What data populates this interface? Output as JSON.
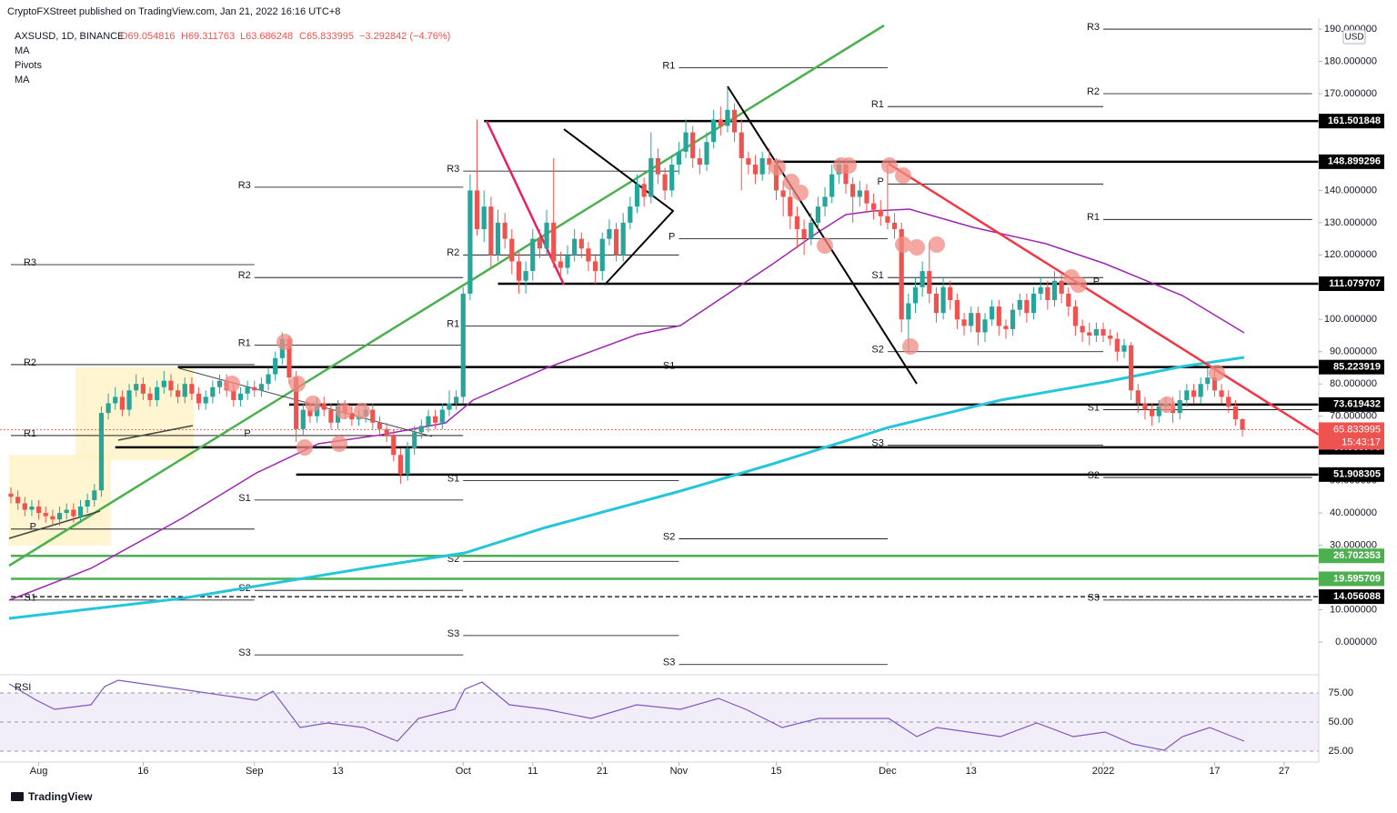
{
  "chart_data": {
    "type": "candlestick",
    "header": "CryptoFXStreet published on TradingView.com, Jan 21, 2022 16:16 UTC+8",
    "legend": {
      "symbol": "AXSUSD, 1D, BINANCE",
      "open": "O69.054816",
      "high": "H69.311763",
      "low": "L63.686248",
      "close": "C65.833995",
      "change": "−3.292842 (−4.76%)",
      "indicators": [
        "MA",
        "Pivots",
        "MA"
      ]
    },
    "currency": "USD",
    "colors": {
      "up": "#26a69a",
      "down": "#ef5350"
    },
    "candles": [
      [
        46,
        48,
        43,
        45
      ],
      [
        45,
        47,
        41,
        43
      ],
      [
        43,
        45,
        39,
        41
      ],
      [
        41,
        44,
        39,
        42
      ],
      [
        42,
        44,
        38,
        40
      ],
      [
        40,
        42,
        37,
        39
      ],
      [
        39,
        41,
        36,
        38
      ],
      [
        38,
        42,
        36,
        40
      ],
      [
        40,
        43,
        38,
        41
      ],
      [
        41,
        43,
        37,
        39
      ],
      [
        39,
        44,
        37,
        42
      ],
      [
        42,
        46,
        40,
        44
      ],
      [
        44,
        49,
        42,
        47
      ],
      [
        47,
        73,
        45,
        71
      ],
      [
        71,
        77,
        69,
        74
      ],
      [
        74,
        79,
        72,
        76
      ],
      [
        76,
        78,
        70,
        72
      ],
      [
        72,
        80,
        70,
        78
      ],
      [
        78,
        83,
        76,
        80
      ],
      [
        80,
        82,
        75,
        77
      ],
      [
        77,
        79,
        73,
        75
      ],
      [
        75,
        81,
        73,
        79
      ],
      [
        79,
        84,
        77,
        81
      ],
      [
        81,
        83,
        76,
        78
      ],
      [
        78,
        80,
        74,
        76
      ],
      [
        76,
        82,
        74,
        80
      ],
      [
        80,
        82,
        75,
        77
      ],
      [
        77,
        79,
        72,
        74
      ],
      [
        74,
        78,
        72,
        76
      ],
      [
        76,
        81,
        74,
        79
      ],
      [
        79,
        83,
        77,
        81
      ],
      [
        81,
        83,
        76,
        78
      ],
      [
        78,
        80,
        73,
        75
      ],
      [
        75,
        79,
        73,
        77
      ],
      [
        77,
        81,
        75,
        79
      ],
      [
        79,
        81,
        76,
        78
      ],
      [
        78,
        82,
        76,
        80
      ],
      [
        80,
        85,
        78,
        83
      ],
      [
        83,
        90,
        81,
        88
      ],
      [
        88,
        96,
        86,
        94
      ],
      [
        94,
        95,
        80,
        82
      ],
      [
        82,
        84,
        62,
        66
      ],
      [
        66,
        74,
        64,
        72
      ],
      [
        72,
        74,
        68,
        70
      ],
      [
        70,
        76,
        68,
        74
      ],
      [
        74,
        76,
        70,
        72
      ],
      [
        72,
        74,
        66,
        68
      ],
      [
        68,
        75,
        66,
        73
      ],
      [
        73,
        75,
        69,
        71
      ],
      [
        71,
        73,
        67,
        69
      ],
      [
        69,
        72,
        67,
        70
      ],
      [
        70,
        74,
        68,
        72
      ],
      [
        72,
        74,
        66,
        68
      ],
      [
        68,
        70,
        64,
        66
      ],
      [
        66,
        68,
        62,
        64
      ],
      [
        64,
        66,
        56,
        58
      ],
      [
        58,
        60,
        49,
        52
      ],
      [
        52,
        62,
        50,
        60
      ],
      [
        60,
        67,
        58,
        65
      ],
      [
        65,
        69,
        63,
        67
      ],
      [
        67,
        72,
        65,
        70
      ],
      [
        70,
        72,
        66,
        68
      ],
      [
        68,
        74,
        66,
        72
      ],
      [
        72,
        78,
        70,
        74
      ],
      [
        74,
        78,
        72,
        76
      ],
      [
        76,
        110,
        74,
        108
      ],
      [
        108,
        145,
        106,
        140
      ],
      [
        140,
        162,
        126,
        128
      ],
      [
        128,
        140,
        124,
        135
      ],
      [
        135,
        138,
        116,
        120
      ],
      [
        120,
        134,
        118,
        130
      ],
      [
        130,
        133,
        122,
        125
      ],
      [
        125,
        128,
        114,
        118
      ],
      [
        118,
        121,
        108,
        112
      ],
      [
        112,
        118,
        108,
        115
      ],
      [
        115,
        128,
        112,
        125
      ],
      [
        125,
        128,
        119,
        122
      ],
      [
        122,
        134,
        120,
        130
      ],
      [
        130,
        150,
        116,
        118
      ],
      [
        118,
        121,
        113,
        116
      ],
      [
        116,
        123,
        114,
        120
      ],
      [
        120,
        128,
        118,
        125
      ],
      [
        125,
        127,
        119,
        122
      ],
      [
        122,
        124,
        115,
        118
      ],
      [
        118,
        120,
        111,
        115
      ],
      [
        115,
        127,
        112,
        125
      ],
      [
        125,
        131,
        123,
        128
      ],
      [
        128,
        130,
        118,
        120
      ],
      [
        120,
        133,
        118,
        130
      ],
      [
        130,
        138,
        128,
        135
      ],
      [
        135,
        145,
        133,
        142
      ],
      [
        142,
        144,
        135,
        138
      ],
      [
        138,
        158,
        136,
        150
      ],
      [
        150,
        153,
        142,
        145
      ],
      [
        145,
        147,
        137,
        140
      ],
      [
        140,
        151,
        138,
        148
      ],
      [
        148,
        155,
        145,
        152
      ],
      [
        152,
        162,
        150,
        158
      ],
      [
        158,
        160,
        147,
        150
      ],
      [
        150,
        153,
        145,
        148
      ],
      [
        148,
        158,
        146,
        155
      ],
      [
        155,
        165,
        153,
        162
      ],
      [
        162,
        166,
        157,
        160
      ],
      [
        160,
        172,
        158,
        165
      ],
      [
        165,
        167,
        155,
        158
      ],
      [
        158,
        162,
        140,
        150
      ],
      [
        150,
        152,
        145,
        148
      ],
      [
        148,
        151,
        142,
        145
      ],
      [
        145,
        152,
        143,
        150
      ],
      [
        150,
        153,
        145,
        148
      ],
      [
        148,
        150,
        137,
        140
      ],
      [
        140,
        143,
        132,
        138
      ],
      [
        138,
        141,
        128,
        132
      ],
      [
        132,
        135,
        122,
        128
      ],
      [
        128,
        131,
        120,
        125
      ],
      [
        125,
        133,
        123,
        130
      ],
      [
        130,
        138,
        128,
        135
      ],
      [
        135,
        141,
        132,
        138
      ],
      [
        138,
        148,
        136,
        145
      ],
      [
        145,
        150,
        142,
        148
      ],
      [
        148,
        150,
        139,
        142
      ],
      [
        142,
        144,
        130,
        138
      ],
      [
        138,
        143,
        135,
        140
      ],
      [
        140,
        142,
        133,
        136
      ],
      [
        136,
        139,
        131,
        134
      ],
      [
        134,
        137,
        129,
        132
      ],
      [
        132,
        148,
        128,
        130
      ],
      [
        130,
        133,
        125,
        128
      ],
      [
        128,
        130,
        96,
        100
      ],
      [
        100,
        108,
        90,
        105
      ],
      [
        105,
        113,
        102,
        110
      ],
      [
        110,
        118,
        107,
        115
      ],
      [
        115,
        124,
        105,
        108
      ],
      [
        108,
        110,
        99,
        102
      ],
      [
        102,
        113,
        100,
        110
      ],
      [
        110,
        112,
        103,
        106
      ],
      [
        106,
        108,
        97,
        100
      ],
      [
        100,
        102,
        95,
        98
      ],
      [
        98,
        104,
        96,
        102
      ],
      [
        102,
        104,
        92,
        96
      ],
      [
        96,
        102,
        93,
        100
      ],
      [
        100,
        106,
        98,
        104
      ],
      [
        104,
        106,
        95,
        98
      ],
      [
        98,
        100,
        94,
        97
      ],
      [
        97,
        105,
        95,
        103
      ],
      [
        103,
        108,
        101,
        106
      ],
      [
        106,
        108,
        99,
        102
      ],
      [
        102,
        110,
        100,
        108
      ],
      [
        108,
        113,
        106,
        110
      ],
      [
        110,
        112,
        103,
        106
      ],
      [
        106,
        115,
        104,
        112
      ],
      [
        112,
        114,
        105,
        108
      ],
      [
        108,
        110,
        101,
        104
      ],
      [
        104,
        106,
        95,
        98
      ],
      [
        98,
        100,
        93,
        96
      ],
      [
        96,
        99,
        92,
        95
      ],
      [
        95,
        99,
        93,
        97
      ],
      [
        97,
        99,
        93,
        95
      ],
      [
        95,
        97,
        92,
        94
      ],
      [
        94,
        96,
        87,
        90
      ],
      [
        90,
        94,
        88,
        92
      ],
      [
        92,
        93,
        75,
        78
      ],
      [
        78,
        80,
        71,
        74
      ],
      [
        74,
        76,
        69,
        72
      ],
      [
        72,
        74,
        67,
        70
      ],
      [
        70,
        75,
        68,
        73
      ],
      [
        73,
        76,
        71,
        74
      ],
      [
        74,
        76,
        68,
        71
      ],
      [
        71,
        78,
        69,
        75
      ],
      [
        75,
        80,
        73,
        78
      ],
      [
        78,
        80,
        74,
        76
      ],
      [
        76,
        82,
        74,
        80
      ],
      [
        80,
        85,
        78,
        82
      ],
      [
        82,
        84,
        76,
        78
      ],
      [
        78,
        80,
        74,
        76
      ],
      [
        76,
        78,
        71,
        73
      ],
      [
        73,
        75,
        67,
        69.054816
      ],
      [
        69.054816,
        69.311763,
        63.686248,
        65.833995
      ]
    ],
    "xticks": [
      {
        "value": 4,
        "label": "Aug"
      },
      {
        "value": 19,
        "label": "16"
      },
      {
        "value": 35,
        "label": "Sep"
      },
      {
        "value": 47,
        "label": "13"
      },
      {
        "value": 65,
        "label": "Oct"
      },
      {
        "value": 75,
        "label": "11"
      },
      {
        "value": 85,
        "label": "21"
      },
      {
        "value": 96,
        "label": "Nov"
      },
      {
        "value": 110,
        "label": "15"
      },
      {
        "value": 126,
        "label": "Dec"
      },
      {
        "value": 138,
        "label": "13"
      },
      {
        "value": 157,
        "label": "2022"
      },
      {
        "value": 173,
        "label": "17"
      },
      {
        "value": 183,
        "label": "27"
      }
    ],
    "ylim": [
      -9.6,
      193.4
    ],
    "yticks": [
      {
        "value": 190,
        "label": "190.000000"
      },
      {
        "value": 180,
        "label": "180.000000"
      },
      {
        "value": 170,
        "label": "170.000000"
      },
      {
        "value": 140,
        "label": "140.000000"
      },
      {
        "value": 130,
        "label": "130.000000"
      },
      {
        "value": 120,
        "label": "120.000000"
      },
      {
        "value": 100,
        "label": "100.000000"
      },
      {
        "value": 90,
        "label": "90.000000"
      },
      {
        "value": 80,
        "label": "80.000000"
      },
      {
        "value": 70,
        "label": "70.000000"
      },
      {
        "value": 50,
        "label": "50.000000"
      },
      {
        "value": 40,
        "label": "40.000000"
      },
      {
        "value": 30,
        "label": "30.000000"
      },
      {
        "value": 10,
        "label": "10.000000"
      },
      {
        "value": 0,
        "label": "0.000000"
      }
    ],
    "levels": [
      {
        "value": 161.501848,
        "start": 68,
        "color": "#000000",
        "style": "solid"
      },
      {
        "value": 148.899296,
        "start": 110,
        "color": "#000000",
        "style": "solid"
      },
      {
        "value": 111.079707,
        "start": 70,
        "color": "#000000",
        "style": "solid"
      },
      {
        "value": 85.223919,
        "start": 24,
        "color": "#000000",
        "style": "solid"
      },
      {
        "value": 73.619432,
        "start": 40,
        "color": "#000000",
        "style": "solid"
      },
      {
        "value": 60.363778,
        "start": 15,
        "color": "#000000",
        "style": "solid"
      },
      {
        "value": 51.908305,
        "start": 41,
        "color": "#000000",
        "style": "solid"
      },
      {
        "value": 26.702353,
        "start": 0,
        "color": "#4caf50",
        "style": "solid"
      },
      {
        "value": 19.595709,
        "start": 0,
        "color": "#4caf50",
        "style": "solid"
      },
      {
        "value": 14.056088,
        "start": 0,
        "color": "#000000",
        "style": "dashed"
      }
    ],
    "pivots": [
      {
        "label": "R3",
        "value": 117,
        "start": 0,
        "end": 35
      },
      {
        "label": "R2",
        "value": 86,
        "start": 0,
        "end": 35
      },
      {
        "label": "R1",
        "value": 64,
        "start": 0,
        "end": 35
      },
      {
        "label": "P",
        "value": 35,
        "start": 0,
        "end": 35
      },
      {
        "label": "S1",
        "value": 13,
        "start": 0,
        "end": 35
      },
      {
        "label": "R3",
        "value": 141,
        "start": 35,
        "end": 65
      },
      {
        "label": "R2",
        "value": 113,
        "start": 35,
        "end": 65
      },
      {
        "label": "R1",
        "value": 92,
        "start": 35,
        "end": 65
      },
      {
        "label": "P",
        "value": 64,
        "start": 35,
        "end": 65
      },
      {
        "label": "S1",
        "value": 44,
        "start": 35,
        "end": 65
      },
      {
        "label": "S2",
        "value": 16,
        "start": 35,
        "end": 65
      },
      {
        "label": "S3",
        "value": -4,
        "start": 35,
        "end": 65
      },
      {
        "label": "R3",
        "value": 146,
        "start": 65,
        "end": 96
      },
      {
        "label": "R2",
        "value": 120,
        "start": 65,
        "end": 96
      },
      {
        "label": "R1",
        "value": 98,
        "start": 65,
        "end": 96
      },
      {
        "label": "S1",
        "value": 50,
        "start": 65,
        "end": 96
      },
      {
        "label": "S2",
        "value": 25,
        "start": 65,
        "end": 96
      },
      {
        "label": "S3",
        "value": 2,
        "start": 65,
        "end": 96
      },
      {
        "label": "R1",
        "value": 178,
        "start": 96,
        "end": 126
      },
      {
        "label": "P",
        "value": 125,
        "start": 96,
        "end": 126
      },
      {
        "label": "S1",
        "value": 85,
        "start": 96,
        "end": 126
      },
      {
        "label": "S2",
        "value": 32,
        "start": 96,
        "end": 126
      },
      {
        "label": "S3",
        "value": -7,
        "start": 96,
        "end": 126
      },
      {
        "label": "R1",
        "value": 166,
        "start": 126,
        "end": 157
      },
      {
        "label": "P",
        "value": 142,
        "start": 126,
        "end": 157
      },
      {
        "label": "S1",
        "value": 113,
        "start": 126,
        "end": 157
      },
      {
        "label": "S2",
        "value": 90,
        "start": 126,
        "end": 157
      },
      {
        "label": "S3",
        "value": 61,
        "start": 126,
        "end": 157
      },
      {
        "label": "R3",
        "value": 190,
        "start": 157,
        "end": 187
      },
      {
        "label": "R2",
        "value": 170,
        "start": 157,
        "end": 187
      },
      {
        "label": "R1",
        "value": 131,
        "start": 157,
        "end": 187
      },
      {
        "label": "P",
        "value": 111,
        "start": 157,
        "end": 187
      },
      {
        "label": "S1",
        "value": 72,
        "start": 157,
        "end": 187
      },
      {
        "label": "S2",
        "value": 51,
        "start": 157,
        "end": 187
      },
      {
        "label": "S3",
        "value": 13,
        "start": 157,
        "end": 187
      }
    ],
    "current": {
      "value": 65.833995,
      "countdown": "15:43:17"
    },
    "rsi": {
      "title": "RSI",
      "ylim": [
        15.6,
        88.3
      ],
      "yticks": [
        {
          "value": 75,
          "label": "75.00"
        },
        {
          "value": 50,
          "label": "50.00"
        },
        {
          "value": 25,
          "label": "25.00"
        }
      ]
    },
    "footer": "TradingView"
  }
}
